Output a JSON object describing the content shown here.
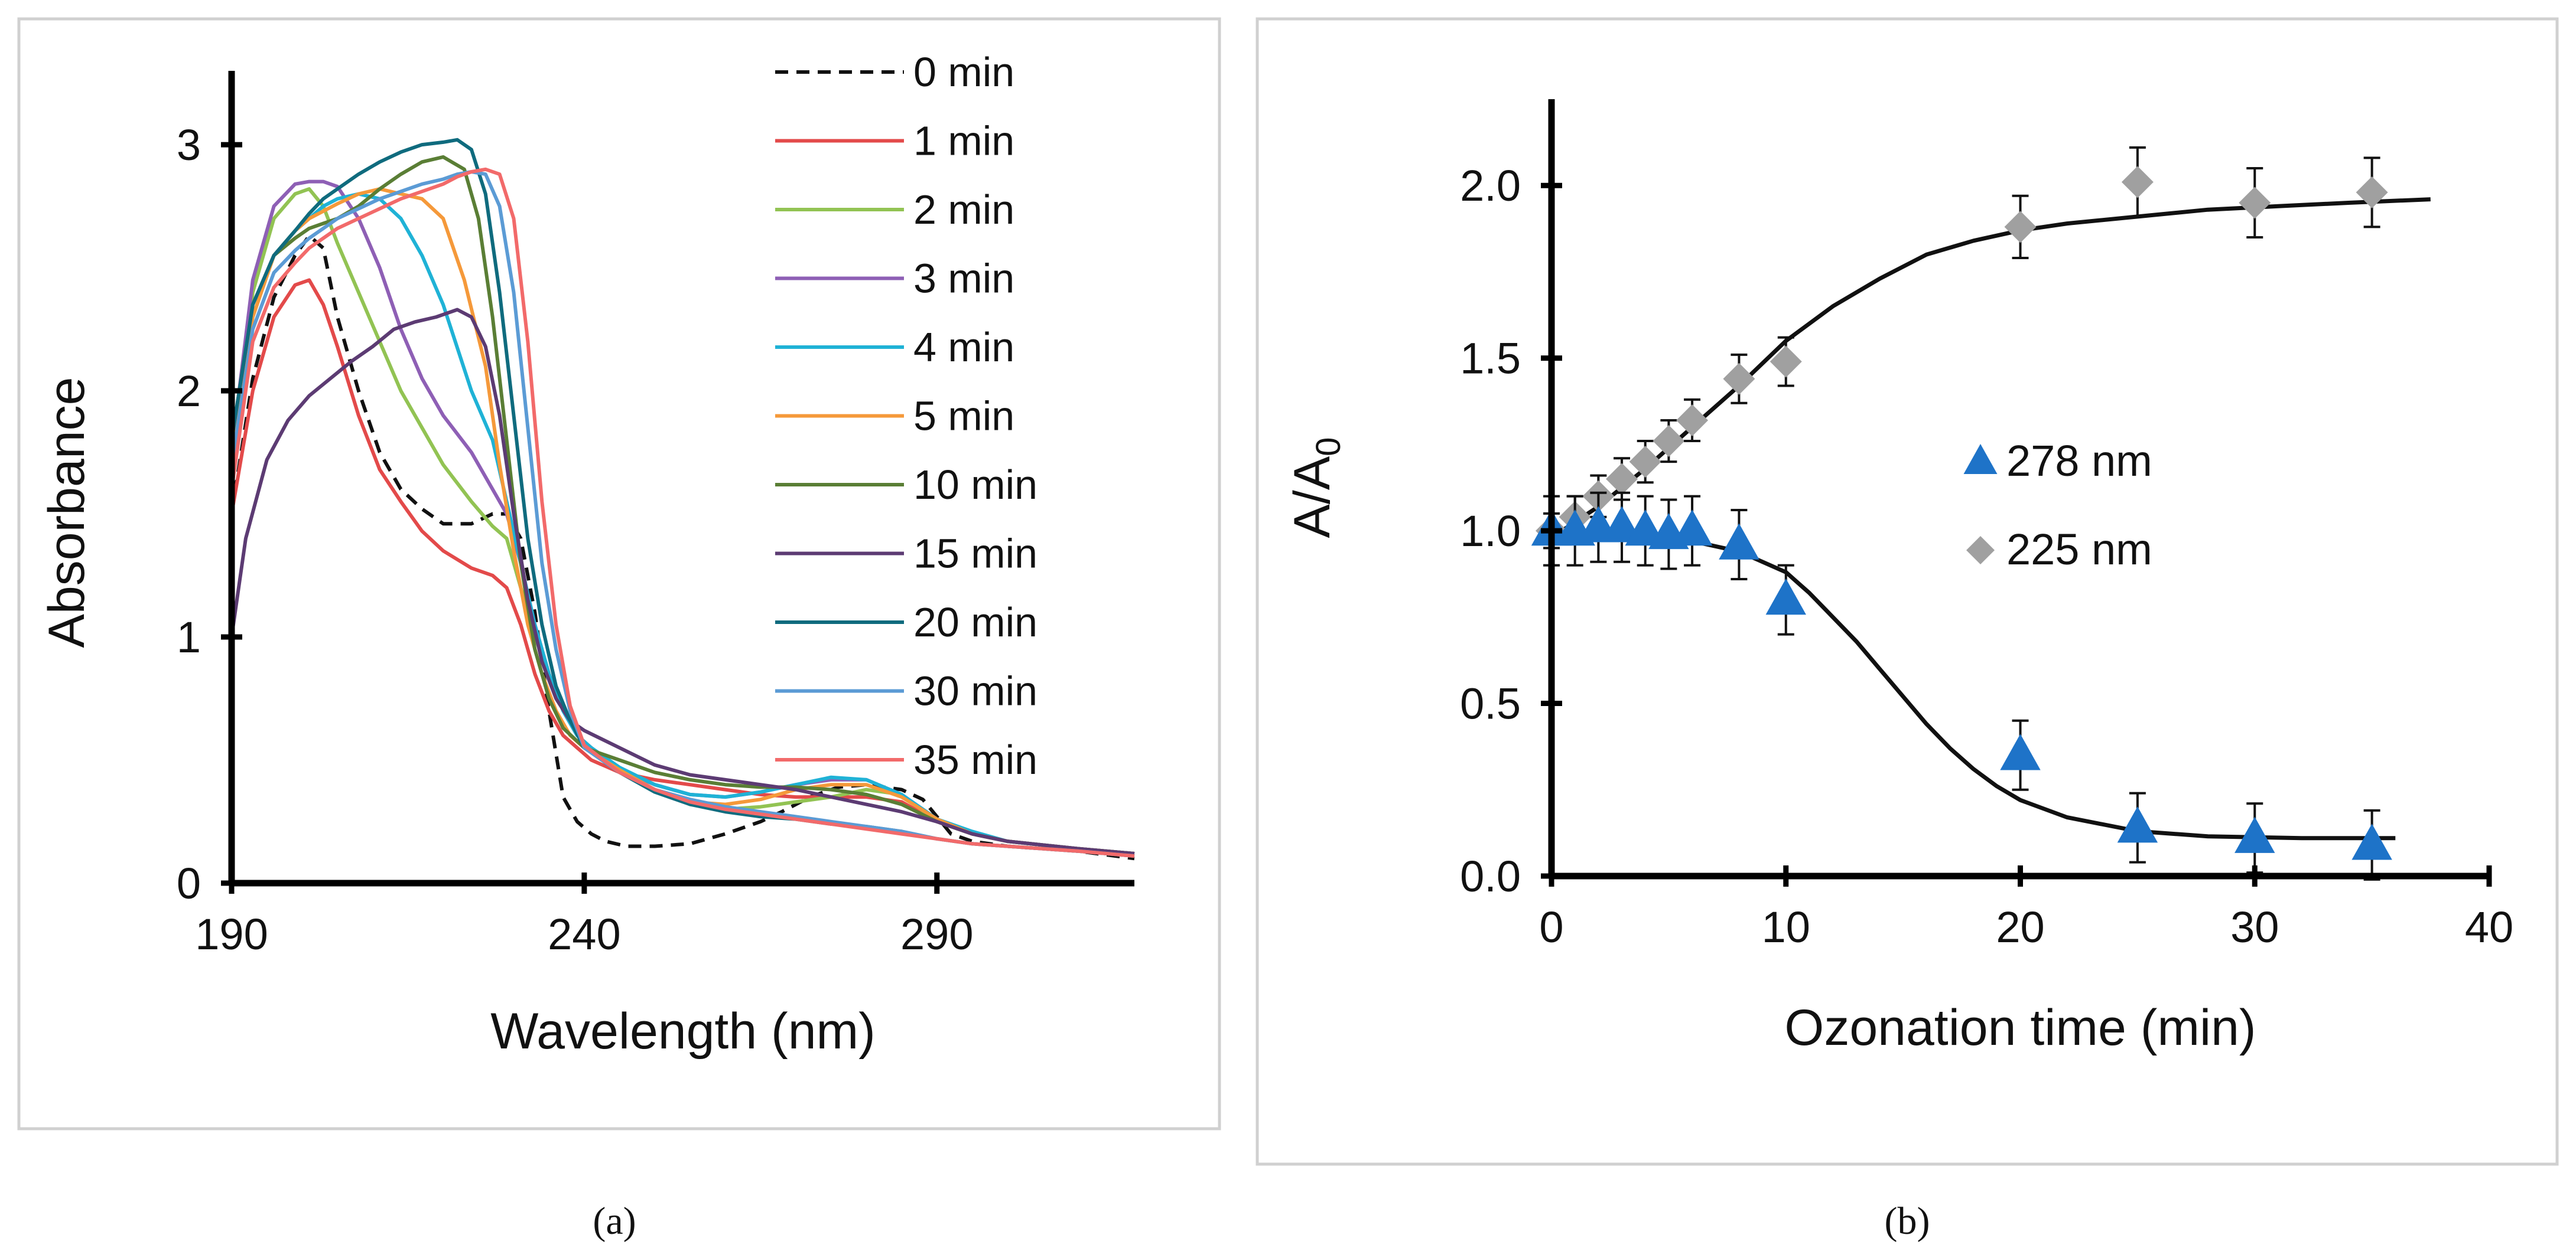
{
  "chart_data": [
    {
      "type": "line",
      "panel_label": "(a)",
      "title": "",
      "xlabel": "Wavelength (nm)",
      "ylabel": "Absorbance",
      "xlim": [
        190,
        318
      ],
      "ylim": [
        0,
        3.3
      ],
      "x_ticks": [
        "190",
        "240",
        "290"
      ],
      "x_tick_values": [
        190,
        240,
        290
      ],
      "y_ticks": [
        "0",
        "1",
        "2",
        "3"
      ],
      "y_tick_values": [
        0,
        1,
        2,
        3
      ],
      "legend_position": "top-right",
      "series": [
        {
          "name": "0 min",
          "color": "#111111",
          "dashed": true,
          "x": [
            190,
            193,
            196,
            199,
            201,
            203,
            205,
            208,
            211,
            214,
            217,
            220,
            224,
            227,
            229,
            231,
            233,
            235,
            237,
            239,
            241,
            243,
            246,
            250,
            255,
            260,
            265,
            268,
            272,
            276,
            280,
            285,
            288,
            290,
            292,
            295,
            300,
            305,
            310,
            318
          ],
          "y": [
            1.5,
            2.05,
            2.38,
            2.55,
            2.63,
            2.58,
            2.3,
            2.0,
            1.75,
            1.6,
            1.52,
            1.46,
            1.46,
            1.5,
            1.5,
            1.4,
            1.1,
            0.7,
            0.35,
            0.25,
            0.2,
            0.17,
            0.15,
            0.15,
            0.16,
            0.2,
            0.25,
            0.29,
            0.35,
            0.39,
            0.4,
            0.38,
            0.34,
            0.27,
            0.2,
            0.17,
            0.15,
            0.14,
            0.13,
            0.1
          ]
        },
        {
          "name": "1 min",
          "color": "#e34a4a",
          "x": [
            190,
            193,
            196,
            199,
            201,
            203,
            205,
            208,
            211,
            214,
            217,
            220,
            224,
            227,
            229,
            231,
            233,
            235,
            237,
            239,
            241,
            245,
            250,
            255,
            260,
            265,
            270,
            275,
            280,
            285,
            290,
            295,
            300,
            310,
            318
          ],
          "y": [
            1.5,
            2.0,
            2.3,
            2.43,
            2.45,
            2.35,
            2.18,
            1.9,
            1.68,
            1.55,
            1.43,
            1.35,
            1.28,
            1.25,
            1.2,
            1.05,
            0.85,
            0.7,
            0.6,
            0.55,
            0.5,
            0.45,
            0.42,
            0.4,
            0.38,
            0.36,
            0.35,
            0.35,
            0.35,
            0.33,
            0.25,
            0.2,
            0.17,
            0.14,
            0.12
          ]
        },
        {
          "name": "2 min",
          "color": "#92c353",
          "x": [
            190,
            193,
            196,
            199,
            201,
            203,
            205,
            208,
            211,
            214,
            217,
            220,
            224,
            227,
            229,
            231,
            233,
            235,
            237,
            239,
            241,
            245,
            250,
            255,
            260,
            265,
            270,
            275,
            280,
            285,
            290,
            295,
            300,
            310,
            318
          ],
          "y": [
            1.7,
            2.4,
            2.7,
            2.8,
            2.82,
            2.75,
            2.6,
            2.4,
            2.2,
            2.0,
            1.85,
            1.7,
            1.55,
            1.45,
            1.4,
            1.2,
            1.0,
            0.85,
            0.7,
            0.6,
            0.55,
            0.45,
            0.38,
            0.32,
            0.3,
            0.31,
            0.33,
            0.35,
            0.38,
            0.36,
            0.25,
            0.2,
            0.17,
            0.14,
            0.12
          ]
        },
        {
          "name": "3 min",
          "color": "#8e5fb5",
          "x": [
            190,
            193,
            196,
            199,
            201,
            203,
            205,
            208,
            211,
            214,
            217,
            220,
            224,
            227,
            229,
            231,
            233,
            235,
            237,
            239,
            241,
            245,
            250,
            255,
            260,
            265,
            270,
            275,
            280,
            285,
            290,
            295,
            300,
            310,
            318
          ],
          "y": [
            1.75,
            2.45,
            2.75,
            2.84,
            2.85,
            2.85,
            2.83,
            2.7,
            2.5,
            2.25,
            2.05,
            1.9,
            1.75,
            1.6,
            1.5,
            1.3,
            1.05,
            0.85,
            0.7,
            0.6,
            0.55,
            0.46,
            0.4,
            0.36,
            0.35,
            0.37,
            0.4,
            0.42,
            0.42,
            0.36,
            0.26,
            0.2,
            0.17,
            0.14,
            0.12
          ]
        },
        {
          "name": "4 min",
          "color": "#1fb2d6",
          "x": [
            190,
            193,
            196,
            199,
            201,
            203,
            205,
            208,
            211,
            214,
            217,
            220,
            224,
            227,
            229,
            231,
            233,
            235,
            237,
            239,
            241,
            245,
            250,
            255,
            260,
            265,
            270,
            275,
            280,
            285,
            290,
            295,
            300,
            310,
            318
          ],
          "y": [
            1.7,
            2.3,
            2.55,
            2.65,
            2.7,
            2.75,
            2.78,
            2.8,
            2.78,
            2.7,
            2.55,
            2.35,
            2.0,
            1.8,
            1.55,
            1.3,
            1.05,
            0.85,
            0.7,
            0.6,
            0.55,
            0.47,
            0.4,
            0.36,
            0.35,
            0.37,
            0.4,
            0.43,
            0.42,
            0.36,
            0.26,
            0.21,
            0.17,
            0.14,
            0.12
          ]
        },
        {
          "name": "5 min",
          "color": "#f5993a",
          "x": [
            190,
            193,
            196,
            199,
            201,
            203,
            205,
            208,
            211,
            214,
            217,
            220,
            223,
            226,
            228,
            230,
            232,
            234,
            236,
            238,
            240,
            245,
            250,
            255,
            260,
            265,
            270,
            275,
            280,
            285,
            290,
            295,
            300,
            310,
            318
          ],
          "y": [
            1.7,
            2.3,
            2.55,
            2.65,
            2.7,
            2.73,
            2.76,
            2.8,
            2.82,
            2.8,
            2.78,
            2.7,
            2.45,
            2.1,
            1.7,
            1.35,
            1.05,
            0.85,
            0.7,
            0.6,
            0.55,
            0.46,
            0.38,
            0.33,
            0.32,
            0.34,
            0.38,
            0.4,
            0.4,
            0.35,
            0.26,
            0.2,
            0.17,
            0.14,
            0.12
          ]
        },
        {
          "name": "10 min",
          "color": "#5a7e35",
          "x": [
            190,
            193,
            196,
            199,
            201,
            203,
            205,
            208,
            211,
            214,
            217,
            220,
            223,
            225,
            227,
            229,
            231,
            233,
            235,
            237,
            240,
            245,
            250,
            255,
            260,
            265,
            270,
            275,
            280,
            285,
            290,
            295,
            300,
            310,
            318
          ],
          "y": [
            1.8,
            2.35,
            2.55,
            2.62,
            2.66,
            2.68,
            2.7,
            2.75,
            2.82,
            2.88,
            2.93,
            2.95,
            2.9,
            2.7,
            2.3,
            1.8,
            1.3,
            0.95,
            0.75,
            0.63,
            0.55,
            0.5,
            0.45,
            0.42,
            0.4,
            0.39,
            0.39,
            0.38,
            0.36,
            0.32,
            0.25,
            0.2,
            0.17,
            0.14,
            0.12
          ]
        },
        {
          "name": "15 min",
          "color": "#5c3b73",
          "x": [
            190,
            192,
            195,
            198,
            201,
            204,
            207,
            210,
            213,
            216,
            219,
            222,
            224,
            226,
            228,
            230,
            232,
            234,
            236,
            238,
            240,
            245,
            250,
            255,
            260,
            265,
            270,
            275,
            280,
            285,
            290,
            295,
            300,
            310,
            318
          ],
          "y": [
            1.0,
            1.4,
            1.72,
            1.88,
            1.98,
            2.05,
            2.12,
            2.18,
            2.25,
            2.28,
            2.3,
            2.33,
            2.3,
            2.18,
            1.9,
            1.5,
            1.15,
            0.9,
            0.75,
            0.66,
            0.62,
            0.55,
            0.48,
            0.44,
            0.42,
            0.4,
            0.38,
            0.35,
            0.32,
            0.29,
            0.25,
            0.2,
            0.17,
            0.14,
            0.12
          ]
        },
        {
          "name": "20 min",
          "color": "#0f6b7e",
          "x": [
            190,
            193,
            196,
            199,
            201,
            203,
            205,
            208,
            211,
            214,
            217,
            220,
            222,
            224,
            226,
            228,
            230,
            232,
            234,
            236,
            238,
            240,
            245,
            250,
            255,
            260,
            265,
            270,
            275,
            280,
            285,
            290,
            295,
            300,
            310,
            318
          ],
          "y": [
            1.8,
            2.35,
            2.55,
            2.65,
            2.72,
            2.78,
            2.82,
            2.88,
            2.93,
            2.97,
            3.0,
            3.01,
            3.02,
            2.98,
            2.8,
            2.4,
            1.9,
            1.4,
            1.05,
            0.8,
            0.66,
            0.55,
            0.45,
            0.37,
            0.32,
            0.29,
            0.27,
            0.26,
            0.24,
            0.23,
            0.21,
            0.18,
            0.16,
            0.15,
            0.13,
            0.11
          ]
        },
        {
          "name": "30 min",
          "color": "#5b9bd5",
          "x": [
            190,
            193,
            196,
            199,
            201,
            203,
            205,
            208,
            211,
            214,
            217,
            220,
            222,
            224,
            226,
            228,
            230,
            232,
            234,
            236,
            238,
            240,
            245,
            250,
            255,
            260,
            265,
            270,
            275,
            280,
            285,
            290,
            295,
            300,
            310,
            318
          ],
          "y": [
            1.7,
            2.25,
            2.48,
            2.57,
            2.62,
            2.66,
            2.7,
            2.74,
            2.78,
            2.81,
            2.84,
            2.86,
            2.88,
            2.89,
            2.88,
            2.75,
            2.4,
            1.85,
            1.3,
            0.95,
            0.7,
            0.55,
            0.45,
            0.38,
            0.34,
            0.31,
            0.29,
            0.27,
            0.25,
            0.23,
            0.21,
            0.18,
            0.16,
            0.15,
            0.13,
            0.11
          ]
        },
        {
          "name": "35 min",
          "color": "#f26a6a",
          "x": [
            190,
            193,
            196,
            199,
            201,
            203,
            205,
            208,
            211,
            214,
            217,
            220,
            222,
            224,
            226,
            228,
            230,
            232,
            234,
            236,
            238,
            240,
            245,
            250,
            255,
            260,
            265,
            270,
            275,
            280,
            285,
            290,
            295,
            300,
            310,
            318
          ],
          "y": [
            1.6,
            2.2,
            2.42,
            2.52,
            2.58,
            2.62,
            2.66,
            2.7,
            2.74,
            2.78,
            2.81,
            2.84,
            2.87,
            2.89,
            2.9,
            2.88,
            2.7,
            2.2,
            1.55,
            1.05,
            0.72,
            0.56,
            0.45,
            0.38,
            0.33,
            0.3,
            0.28,
            0.26,
            0.24,
            0.22,
            0.2,
            0.18,
            0.16,
            0.15,
            0.13,
            0.11
          ]
        }
      ]
    },
    {
      "type": "scatter",
      "panel_label": "(b)",
      "title": "",
      "xlabel": "Ozonation time (min)",
      "ylabel_main": "A/A",
      "ylabel_sub": "0",
      "xlim": [
        0,
        40
      ],
      "ylim": [
        0,
        2.25
      ],
      "x_ticks": [
        "0",
        "10",
        "20",
        "30",
        "40"
      ],
      "x_tick_values": [
        0,
        10,
        20,
        30,
        40
      ],
      "y_ticks": [
        "0.0",
        "0.5",
        "1.0",
        "1.5",
        "2.0"
      ],
      "y_tick_values": [
        0,
        0.5,
        1.0,
        1.5,
        2.0
      ],
      "legend_position": "center-right",
      "series": [
        {
          "name": "278 nm",
          "marker": "triangle",
          "color": "#1e73c8",
          "x": [
            0,
            1,
            2,
            3,
            4,
            5,
            6,
            8,
            10,
            20,
            25,
            30,
            35
          ],
          "y": [
            1.0,
            1.0,
            1.01,
            1.01,
            1.0,
            0.99,
            1.0,
            0.96,
            0.8,
            0.35,
            0.14,
            0.11,
            0.09
          ],
          "error": [
            0.1,
            0.1,
            0.1,
            0.1,
            0.1,
            0.1,
            0.1,
            0.1,
            0.1,
            0.1,
            0.1,
            0.1,
            0.1
          ]
        },
        {
          "name": "225 nm",
          "marker": "diamond",
          "color": "#a0a0a0",
          "x": [
            0,
            1,
            2,
            3,
            4,
            5,
            6,
            8,
            10,
            20,
            25,
            30,
            35
          ],
          "y": [
            1.0,
            1.04,
            1.1,
            1.15,
            1.2,
            1.26,
            1.32,
            1.44,
            1.49,
            1.88,
            2.01,
            1.95,
            1.98
          ],
          "error": [
            0.05,
            0.06,
            0.06,
            0.06,
            0.06,
            0.06,
            0.06,
            0.07,
            0.07,
            0.09,
            0.1,
            0.1,
            0.1
          ]
        }
      ],
      "fit_curves": [
        {
          "name": "fit 225 nm",
          "color": "#111111",
          "x": [
            0,
            2,
            4,
            6,
            8,
            10,
            12,
            14,
            16,
            18,
            20,
            22,
            25,
            28,
            31,
            34,
            37.5
          ],
          "y": [
            0.98,
            1.07,
            1.18,
            1.3,
            1.42,
            1.55,
            1.65,
            1.73,
            1.8,
            1.84,
            1.87,
            1.89,
            1.91,
            1.93,
            1.94,
            1.95,
            1.96
          ]
        },
        {
          "name": "fit 278 nm",
          "color": "#111111",
          "x": [
            0,
            2,
            4,
            6,
            8,
            10,
            11,
            12,
            13,
            14,
            15,
            16,
            17,
            18,
            19,
            20,
            22,
            25,
            28,
            32,
            36
          ],
          "y": [
            1.0,
            0.995,
            0.985,
            0.97,
            0.94,
            0.88,
            0.82,
            0.75,
            0.68,
            0.6,
            0.52,
            0.44,
            0.37,
            0.31,
            0.26,
            0.22,
            0.17,
            0.13,
            0.115,
            0.11,
            0.11
          ]
        }
      ]
    }
  ]
}
